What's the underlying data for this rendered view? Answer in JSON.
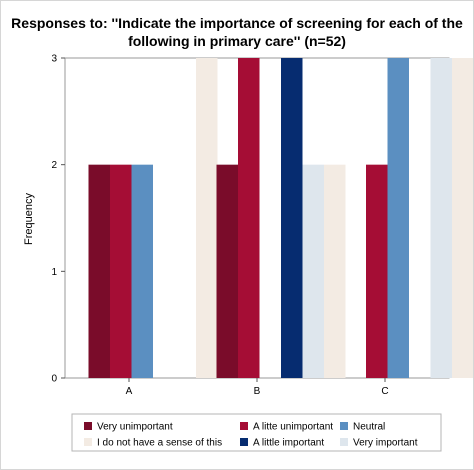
{
  "chart_data": {
    "type": "bar",
    "title": "Responses to: ''Indicate the importance of screening for each of the",
    "subtitle": "following in primary care'' (n=52)",
    "xlabel": "",
    "ylabel": "Frequency",
    "ylim": [
      0,
      3
    ],
    "yticks": [
      "0",
      "1",
      "2",
      "3"
    ],
    "categories": [
      "A",
      "B",
      "C"
    ],
    "series": [
      {
        "name": "Very unimportant",
        "color": "#7a0c2a",
        "values": [
          2,
          2,
          0
        ]
      },
      {
        "name": "A litte unimportant",
        "color": "#a50d35",
        "values": [
          2,
          3,
          2
        ]
      },
      {
        "name": "Neutral",
        "color": "#5b8fc1",
        "values": [
          2,
          0,
          3
        ]
      },
      {
        "name": "A little important",
        "color": "#062c70",
        "values": [
          0,
          3,
          0
        ]
      },
      {
        "name": "Very important",
        "color": "#dee6ed",
        "values": [
          0,
          2,
          3
        ]
      },
      {
        "name": "I do not have a sense of this",
        "color": "#f3ebe3",
        "values": [
          3,
          2,
          3
        ]
      }
    ],
    "legend_position": "bottom",
    "grid": false
  }
}
